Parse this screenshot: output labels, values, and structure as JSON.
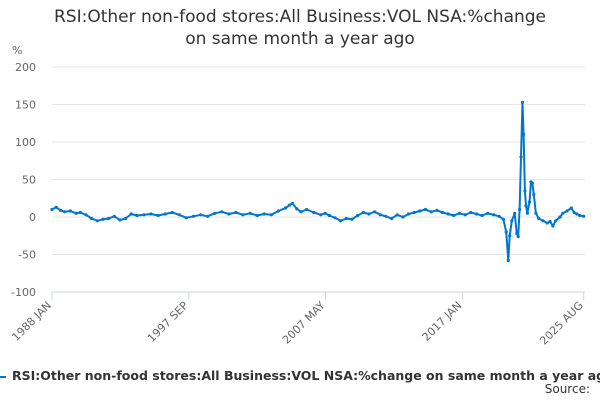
{
  "chart_data": {
    "type": "line",
    "title": "RSI:Other non-food stores:All Business:VOL NSA:%change on same month a year ago",
    "title_lines": [
      "RSI:Other non-food stores:All Business:VOL NSA:%change",
      "on same month a year ago"
    ],
    "ylabel": "%",
    "xlabel": "",
    "ylim": [
      -100,
      200
    ],
    "yticks": [
      200,
      150,
      100,
      50,
      0,
      -50,
      -100
    ],
    "xlim": [
      1988.0,
      2025.67
    ],
    "xticks": [
      {
        "label": "1988 JAN",
        "x": 1988.0
      },
      {
        "label": "1997 SEP",
        "x": 1997.67
      },
      {
        "label": "2007 MAY",
        "x": 2007.33
      },
      {
        "label": "2017 JAN",
        "x": 2017.0
      },
      {
        "label": "2025 AUG",
        "x": 2025.58
      }
    ],
    "grid": true,
    "series": [
      {
        "name": "RSI:Other non-food stores:All Business:VOL NSA:%change on same month a year ago",
        "color": "#0077cc",
        "points": [
          [
            1988.0,
            10
          ],
          [
            1988.3,
            13
          ],
          [
            1988.6,
            9
          ],
          [
            1988.9,
            7
          ],
          [
            1989.3,
            8
          ],
          [
            1989.7,
            5
          ],
          [
            1990.0,
            6
          ],
          [
            1990.4,
            3
          ],
          [
            1990.8,
            -2
          ],
          [
            1991.2,
            -5
          ],
          [
            1991.6,
            -3
          ],
          [
            1992.0,
            -2
          ],
          [
            1992.4,
            1
          ],
          [
            1992.8,
            -4
          ],
          [
            1993.2,
            -2
          ],
          [
            1993.6,
            4
          ],
          [
            1994.0,
            2
          ],
          [
            1994.5,
            3
          ],
          [
            1995.0,
            4
          ],
          [
            1995.5,
            2
          ],
          [
            1996.0,
            4
          ],
          [
            1996.5,
            6
          ],
          [
            1997.0,
            3
          ],
          [
            1997.5,
            -1
          ],
          [
            1998.0,
            1
          ],
          [
            1998.5,
            3
          ],
          [
            1999.0,
            1
          ],
          [
            1999.5,
            5
          ],
          [
            2000.0,
            7
          ],
          [
            2000.5,
            4
          ],
          [
            2001.0,
            6
          ],
          [
            2001.5,
            3
          ],
          [
            2002.0,
            5
          ],
          [
            2002.5,
            2
          ],
          [
            2003.0,
            4
          ],
          [
            2003.5,
            3
          ],
          [
            2004.0,
            8
          ],
          [
            2004.5,
            12
          ],
          [
            2004.8,
            16
          ],
          [
            2005.0,
            18
          ],
          [
            2005.3,
            11
          ],
          [
            2005.6,
            7
          ],
          [
            2006.0,
            10
          ],
          [
            2006.5,
            6
          ],
          [
            2007.0,
            3
          ],
          [
            2007.3,
            5
          ],
          [
            2007.6,
            2
          ],
          [
            2008.0,
            -1
          ],
          [
            2008.4,
            -5
          ],
          [
            2008.8,
            -2
          ],
          [
            2009.2,
            -3
          ],
          [
            2009.6,
            2
          ],
          [
            2010.0,
            6
          ],
          [
            2010.4,
            4
          ],
          [
            2010.8,
            7
          ],
          [
            2011.2,
            3
          ],
          [
            2011.6,
            1
          ],
          [
            2012.0,
            -2
          ],
          [
            2012.4,
            3
          ],
          [
            2012.8,
            0
          ],
          [
            2013.2,
            4
          ],
          [
            2013.6,
            6
          ],
          [
            2014.0,
            8
          ],
          [
            2014.4,
            10
          ],
          [
            2014.8,
            7
          ],
          [
            2015.2,
            9
          ],
          [
            2015.6,
            6
          ],
          [
            2016.0,
            4
          ],
          [
            2016.4,
            2
          ],
          [
            2016.8,
            5
          ],
          [
            2017.2,
            3
          ],
          [
            2017.6,
            6
          ],
          [
            2018.0,
            4
          ],
          [
            2018.4,
            2
          ],
          [
            2018.8,
            5
          ],
          [
            2019.2,
            3
          ],
          [
            2019.6,
            1
          ],
          [
            2019.9,
            -3
          ],
          [
            2020.1,
            -20
          ],
          [
            2020.25,
            -58
          ],
          [
            2020.35,
            -25
          ],
          [
            2020.5,
            -5
          ],
          [
            2020.7,
            5
          ],
          [
            2020.85,
            -22
          ],
          [
            2020.95,
            -26
          ],
          [
            2021.05,
            10
          ],
          [
            2021.15,
            80
          ],
          [
            2021.25,
            153
          ],
          [
            2021.33,
            110
          ],
          [
            2021.42,
            35
          ],
          [
            2021.5,
            15
          ],
          [
            2021.6,
            5
          ],
          [
            2021.75,
            20
          ],
          [
            2021.85,
            47
          ],
          [
            2021.95,
            45
          ],
          [
            2022.05,
            30
          ],
          [
            2022.2,
            5
          ],
          [
            2022.4,
            -2
          ],
          [
            2022.7,
            -5
          ],
          [
            2023.0,
            -8
          ],
          [
            2023.2,
            -6
          ],
          [
            2023.4,
            -12
          ],
          [
            2023.6,
            -5
          ],
          [
            2023.9,
            0
          ],
          [
            2024.1,
            5
          ],
          [
            2024.4,
            8
          ],
          [
            2024.7,
            12
          ],
          [
            2024.9,
            6
          ],
          [
            2025.1,
            4
          ],
          [
            2025.3,
            2
          ],
          [
            2025.58,
            1
          ]
        ]
      }
    ]
  },
  "legend": {
    "label": "RSI:Other non-food stores:All Business:VOL NSA:%change on same month a year ago"
  },
  "source": {
    "label": "Source:"
  }
}
